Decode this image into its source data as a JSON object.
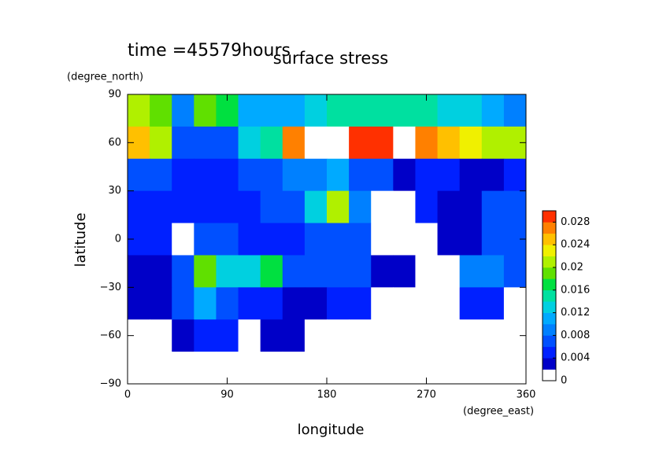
{
  "chart_data": {
    "type": "contour",
    "title": "surface stress",
    "subtitle": "time =45579hours",
    "xlabel": "longitude",
    "ylabel": "latitude",
    "xunit": "(degree_east)",
    "yunit": "(degree_north)",
    "xlim": [
      0,
      360
    ],
    "ylim": [
      -90,
      90
    ],
    "xticks": [
      0,
      90,
      180,
      270,
      360
    ],
    "yticks": [
      {
        "value": -90,
        "label": "−90"
      },
      {
        "value": -60,
        "label": "−60"
      },
      {
        "value": -30,
        "label": "−30"
      },
      0,
      30,
      60,
      90
    ],
    "x": [
      10,
      30,
      50,
      70,
      90,
      110,
      130,
      150,
      170,
      190,
      210,
      230,
      250,
      270,
      290,
      310,
      330,
      350
    ],
    "y": [
      80,
      60,
      40,
      20,
      0,
      -20,
      -40,
      -60,
      -80
    ],
    "z": [
      [
        0.02,
        0.018,
        0.008,
        0.018,
        0.016,
        0.01,
        0.01,
        0.01,
        0.012,
        0.015,
        0.015,
        0.015,
        0.015,
        0.014,
        0.012,
        0.012,
        0.01,
        0.008
      ],
      [
        0.024,
        0.02,
        0.006,
        0.006,
        0.006,
        0.012,
        0.014,
        0.026,
        0.032,
        0.032,
        0.028,
        0.028,
        0.032,
        0.026,
        0.024,
        0.022,
        0.02,
        0.02
      ],
      [
        0.006,
        0.006,
        0.004,
        0.004,
        0.004,
        0.006,
        0.006,
        0.008,
        0.008,
        0.01,
        0.006,
        0.006,
        0.002,
        0.004,
        0.004,
        0.003,
        0.003,
        0.004
      ],
      [
        0.004,
        0.004,
        0.005,
        0.005,
        0.004,
        0.004,
        0.006,
        0.006,
        0.012,
        0.02,
        0.008,
        0.001,
        0.001,
        0.004,
        0.002,
        0.002,
        0.006,
        0.006
      ],
      [
        0.005,
        0.005,
        0.001,
        0.006,
        0.006,
        0.004,
        0.004,
        0.004,
        0.006,
        0.006,
        0.006,
        0.001,
        0.001,
        0.001,
        0.003,
        0.003,
        0.006,
        0.006
      ],
      [
        0.003,
        0.003,
        0.006,
        0.018,
        0.012,
        0.012,
        0.016,
        0.006,
        0.006,
        0.007,
        0.007,
        0.002,
        0.002,
        0.001,
        0.001,
        0.008,
        0.008,
        0.006
      ],
      [
        0.003,
        0.003,
        0.006,
        0.01,
        0.006,
        0.004,
        0.004,
        0.002,
        0.002,
        0.004,
        0.004,
        0.001,
        0.001,
        0.001,
        0.001,
        0.005,
        0.005,
        0.001
      ],
      [
        0.001,
        0.001,
        0.003,
        0.004,
        0.004,
        0.001,
        0.003,
        0.003,
        0.001,
        0.001,
        0.001,
        0.001,
        0.001,
        0.001,
        0.001,
        0.001,
        0.001,
        0.001
      ],
      [
        0,
        0,
        0,
        0,
        0,
        0,
        0,
        0,
        0,
        0,
        0,
        0,
        0,
        0,
        0,
        0,
        0,
        0
      ]
    ],
    "clim": [
      0,
      0.03
    ],
    "cticks": [
      0,
      0.004,
      0.008,
      0.012,
      0.016,
      0.02,
      0.024,
      0.028
    ],
    "colors": [
      "#ffffff",
      "#0000c8",
      "#0020ff",
      "#0050ff",
      "#0080ff",
      "#00aaff",
      "#00d0e0",
      "#00e0a0",
      "#00e040",
      "#60e000",
      "#b0f000",
      "#f0f000",
      "#ffc000",
      "#ff8000",
      "#ff3000"
    ],
    "over_color": "#ffffff"
  }
}
